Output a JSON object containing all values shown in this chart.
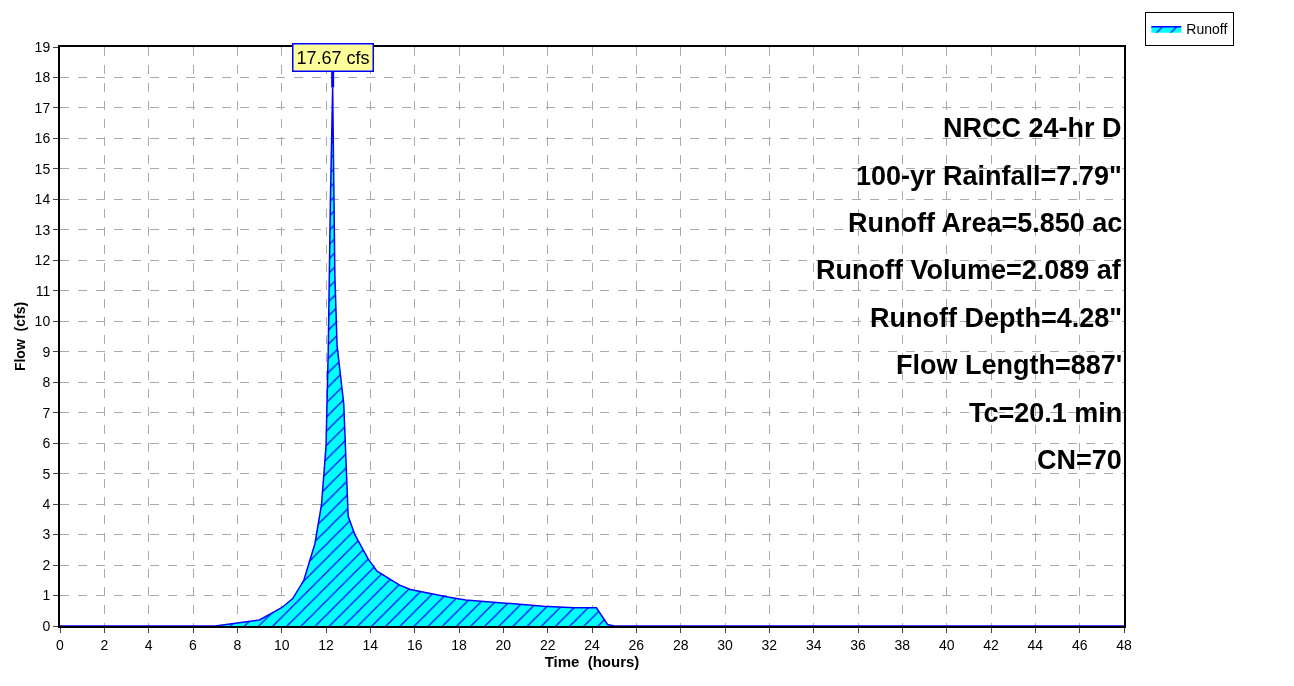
{
  "chart_data": {
    "type": "area",
    "xlabel": "Time  (hours)",
    "ylabel": "Flow  (cfs)",
    "x": [
      0,
      6,
      7,
      8,
      9,
      10,
      10.5,
      11,
      11.5,
      11.8,
      12,
      12.1,
      12.2,
      12.3,
      12.4,
      12.5,
      12.8,
      13,
      13.3,
      13.9,
      14.3,
      15.3,
      15.8,
      17.5,
      18.3,
      20.1,
      21.8,
      23.2,
      24.2,
      24.7,
      25,
      48
    ],
    "series": [
      {
        "name": "Runoff",
        "color": "#00ffff",
        "values": [
          0,
          0,
          0,
          0.1,
          0.2,
          0.6,
          0.9,
          1.5,
          2.7,
          4,
          5.9,
          9,
          14,
          17.67,
          11.5,
          9.2,
          7.3,
          3.6,
          3,
          2.2,
          1.8,
          1.35,
          1.2,
          0.95,
          0.85,
          0.75,
          0.65,
          0.6,
          0.6,
          0.05,
          0,
          0
        ]
      }
    ],
    "xlim": [
      0,
      48
    ],
    "xticks": [
      0,
      2,
      4,
      6,
      8,
      10,
      12,
      14,
      16,
      18,
      20,
      22,
      24,
      26,
      28,
      30,
      32,
      34,
      36,
      38,
      40,
      42,
      44,
      46,
      48
    ],
    "ylim": [
      0,
      19
    ],
    "yticks": [
      0,
      1,
      2,
      3,
      4,
      5,
      6,
      7,
      8,
      9,
      10,
      11,
      12,
      13,
      14,
      15,
      16,
      17,
      18,
      19
    ],
    "grid": true,
    "legend": "top right",
    "marker": "none",
    "line_style": "solid",
    "annotations": [
      {
        "text": "17.67 cfs",
        "x": 12.3,
        "y": 17.67
      },
      "NRCC 24-hr D",
      "100-yr Rainfall=7.79\"",
      "Runoff Area=5.850 ac",
      "Runoff Volume=2.089 af",
      "Runoff Depth=4.28\"",
      "Flow Length=887'",
      "Tc=20.1 min",
      "CN=70"
    ]
  }
}
